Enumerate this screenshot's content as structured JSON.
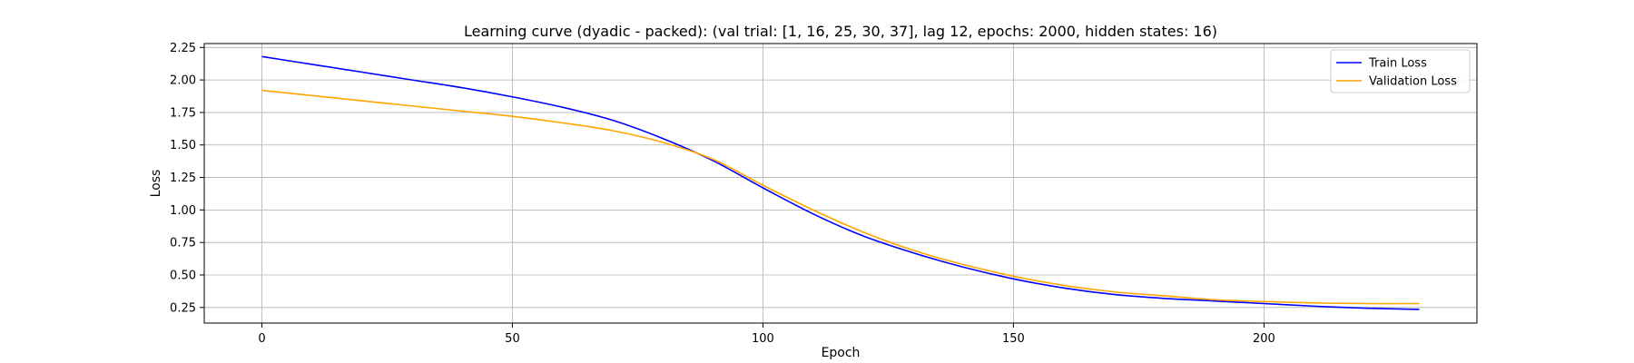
{
  "chart_data": {
    "type": "line",
    "title": "Learning curve (dyadic - packed): (val trial: [1, 16, 25, 30, 37], lag 12, epochs: 2000, hidden states: 16)",
    "xlabel": "Epoch",
    "ylabel": "Loss",
    "xlim": [
      -11.5,
      242.5
    ],
    "ylim": [
      0.13,
      2.28
    ],
    "xticks": [
      0,
      50,
      100,
      150,
      200
    ],
    "yticks": [
      0.25,
      0.5,
      0.75,
      1.0,
      1.25,
      1.5,
      1.75,
      2.0,
      2.25
    ],
    "ytick_labels": [
      "0.25",
      "0.50",
      "0.75",
      "1.00",
      "1.25",
      "1.50",
      "1.75",
      "2.00",
      "2.25"
    ],
    "xtick_labels": [
      "0",
      "50",
      "100",
      "150",
      "200"
    ],
    "grid": true,
    "legend_position": "top-right",
    "x": [
      0,
      10,
      20,
      30,
      40,
      50,
      60,
      70,
      80,
      90,
      100,
      110,
      120,
      130,
      140,
      150,
      160,
      170,
      180,
      190,
      200,
      210,
      220,
      231
    ],
    "series": [
      {
        "name": "Train Loss",
        "color": "#0000ff",
        "values": [
          2.18,
          2.12,
          2.06,
          2.0,
          1.94,
          1.87,
          1.79,
          1.69,
          1.55,
          1.38,
          1.17,
          0.97,
          0.8,
          0.67,
          0.56,
          0.47,
          0.4,
          0.35,
          0.32,
          0.3,
          0.28,
          0.26,
          0.245,
          0.235
        ]
      },
      {
        "name": "Validation Loss",
        "color": "#ffa500",
        "values": [
          1.92,
          1.88,
          1.84,
          1.8,
          1.76,
          1.72,
          1.67,
          1.61,
          1.52,
          1.39,
          1.19,
          1.0,
          0.83,
          0.69,
          0.58,
          0.49,
          0.42,
          0.37,
          0.34,
          0.31,
          0.295,
          0.285,
          0.28,
          0.28
        ]
      }
    ]
  }
}
